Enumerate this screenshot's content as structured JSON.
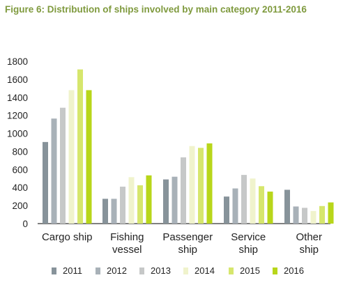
{
  "chart_data": {
    "type": "bar",
    "title": "Figure 6: Distribution of ships involved by main category 2011-2016",
    "categories": [
      [
        "Cargo ship"
      ],
      [
        "Fishing",
        "vessel"
      ],
      [
        "Passenger",
        "ship"
      ],
      [
        "Service",
        "ship"
      ],
      [
        "Other",
        "ship"
      ]
    ],
    "series": [
      {
        "name": "2011",
        "color": "#87939a",
        "values": [
          905,
          275,
          490,
          300,
          375
        ]
      },
      {
        "name": "2012",
        "color": "#a8b1b8",
        "values": [
          1165,
          275,
          520,
          390,
          190
        ]
      },
      {
        "name": "2013",
        "color": "#c6c8c8",
        "values": [
          1285,
          410,
          735,
          540,
          175
        ]
      },
      {
        "name": "2014",
        "color": "#f0f3cc",
        "values": [
          1480,
          515,
          860,
          500,
          140
        ]
      },
      {
        "name": "2015",
        "color": "#d6e66d",
        "values": [
          1710,
          425,
          840,
          415,
          195
        ]
      },
      {
        "name": "2016",
        "color": "#b8d61a",
        "values": [
          1480,
          535,
          890,
          355,
          235
        ]
      }
    ],
    "yticks": [
      0,
      200,
      400,
      600,
      800,
      1000,
      1200,
      1400,
      1600,
      1800
    ],
    "ylim": [
      0,
      1800
    ],
    "xlabel": "",
    "ylabel": "",
    "legend_position": "bottom",
    "grid": false
  }
}
